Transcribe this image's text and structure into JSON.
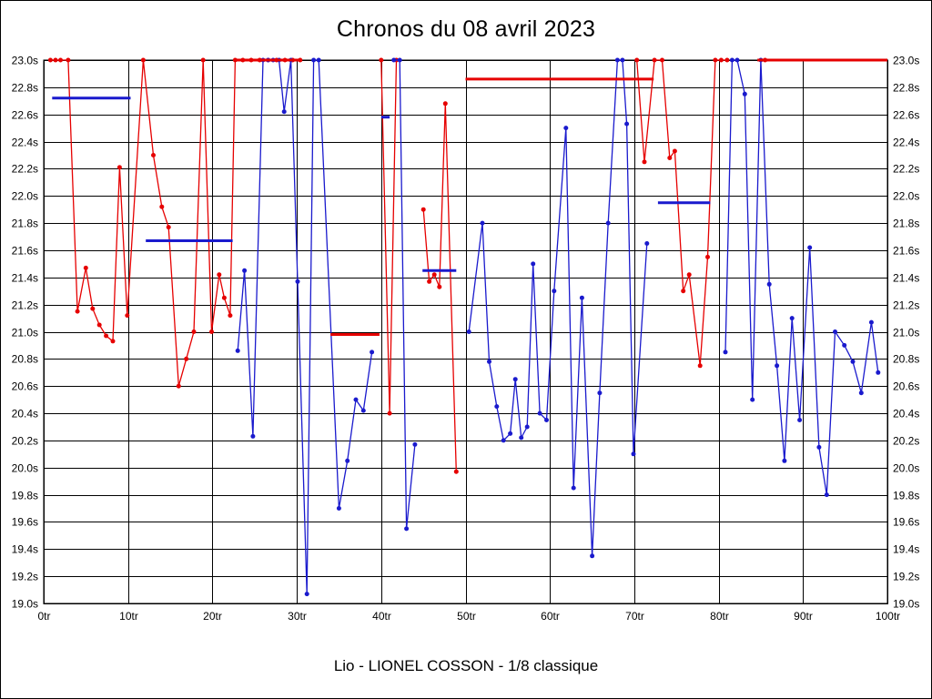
{
  "page": {
    "title": "Chronos du 08 avril 2023",
    "footer": "Lio - LIONEL COSSON - 1/8 classique"
  },
  "chart_data": {
    "type": "line",
    "title": "Chronos du 08 avril 2023",
    "caption": "Lio - LIONEL COSSON - 1/8 classique",
    "x_unit": "tr",
    "y_unit": "s",
    "xlim": [
      0,
      100
    ],
    "ylim": [
      19.0,
      23.0
    ],
    "x_step": 10,
    "y_step": 0.2,
    "grid": true,
    "x_tick_labels": [
      "0tr",
      "10tr",
      "20tr",
      "30tr",
      "40tr",
      "50tr",
      "60tr",
      "70tr",
      "80tr",
      "90tr",
      "100tr"
    ],
    "y_tick_labels": [
      "23.0s",
      "22.8s",
      "22.6s",
      "22.4s",
      "22.2s",
      "22.0s",
      "21.8s",
      "21.6s",
      "21.4s",
      "21.2s",
      "21.0s",
      "20.8s",
      "20.6s",
      "20.4s",
      "20.2s",
      "20.0s",
      "19.8s",
      "19.6s",
      "19.4s",
      "19.2s",
      "19.0s"
    ],
    "colors": {
      "red": "#e60000",
      "blue": "#1a1acd",
      "grid": "#000000"
    },
    "series": [
      {
        "name": "red",
        "color": "#e60000",
        "segments": [
          [
            [
              0.8,
              23.0
            ],
            [
              1.4,
              23.0
            ],
            [
              2.0,
              23.0
            ],
            [
              2.9,
              23.0
            ],
            [
              4.0,
              21.15
            ],
            [
              5.0,
              21.47
            ],
            [
              5.8,
              21.17
            ],
            [
              6.6,
              21.05
            ],
            [
              7.4,
              20.97
            ],
            [
              8.2,
              20.93
            ],
            [
              9.0,
              22.21
            ],
            [
              9.9,
              21.12
            ],
            [
              11.8,
              23.0
            ],
            [
              13.0,
              22.3
            ],
            [
              14.0,
              21.92
            ],
            [
              14.8,
              21.77
            ],
            [
              16.0,
              20.6
            ],
            [
              16.9,
              20.8
            ],
            [
              17.8,
              21.0
            ],
            [
              18.9,
              23.0
            ],
            [
              19.9,
              21.0
            ],
            [
              20.8,
              21.42
            ],
            [
              21.4,
              21.25
            ],
            [
              22.1,
              21.12
            ],
            [
              22.7,
              23.0
            ],
            [
              23.6,
              23.0
            ],
            [
              24.6,
              23.0
            ],
            [
              25.6,
              23.0
            ],
            [
              26.6,
              23.0
            ],
            [
              27.6,
              23.0
            ],
            [
              28.6,
              23.0
            ],
            [
              29.5,
              23.0
            ],
            [
              30.4,
              23.0
            ]
          ],
          [
            [
              40.0,
              23.0
            ],
            [
              41.0,
              20.4
            ],
            [
              41.8,
              23.0
            ]
          ],
          [
            [
              45.0,
              21.9
            ],
            [
              45.7,
              21.37
            ],
            [
              46.3,
              21.42
            ],
            [
              46.9,
              21.33
            ],
            [
              47.6,
              22.68
            ],
            [
              48.9,
              19.97
            ]
          ],
          [
            [
              70.3,
              23.0
            ],
            [
              71.2,
              22.25
            ],
            [
              72.4,
              23.0
            ],
            [
              73.3,
              23.0
            ],
            [
              74.2,
              22.28
            ],
            [
              74.8,
              22.33
            ],
            [
              75.8,
              21.3
            ],
            [
              76.5,
              21.42
            ],
            [
              77.8,
              20.75
            ],
            [
              78.7,
              21.55
            ],
            [
              79.6,
              23.0
            ],
            [
              80.3,
              23.0
            ],
            [
              81.0,
              23.0
            ]
          ],
          [
            [
              85.5,
              23.0
            ]
          ]
        ]
      },
      {
        "name": "blue",
        "color": "#1a1acd",
        "segments": [
          [
            [
              23.0,
              20.86
            ],
            [
              23.8,
              21.45
            ],
            [
              24.8,
              20.23
            ],
            [
              26.0,
              23.0
            ],
            [
              26.6,
              23.0
            ],
            [
              27.2,
              23.0
            ],
            [
              27.9,
              23.0
            ],
            [
              28.5,
              22.62
            ],
            [
              29.3,
              23.0
            ],
            [
              30.1,
              21.37
            ],
            [
              31.2,
              19.07
            ],
            [
              32.0,
              23.0
            ],
            [
              32.6,
              23.0
            ],
            [
              35.0,
              19.7
            ],
            [
              36.0,
              20.05
            ],
            [
              37.0,
              20.5
            ],
            [
              37.9,
              20.42
            ],
            [
              38.9,
              20.85
            ]
          ],
          [
            [
              41.5,
              23.0
            ],
            [
              42.2,
              23.0
            ],
            [
              43.0,
              19.55
            ],
            [
              44.0,
              20.17
            ]
          ],
          [
            [
              50.4,
              21.0
            ],
            [
              52.0,
              21.8
            ],
            [
              52.8,
              20.78
            ],
            [
              53.7,
              20.45
            ],
            [
              54.5,
              20.2
            ],
            [
              55.3,
              20.25
            ],
            [
              55.9,
              20.65
            ],
            [
              56.6,
              20.22
            ],
            [
              57.3,
              20.3
            ],
            [
              58.0,
              21.5
            ],
            [
              58.8,
              20.4
            ],
            [
              59.6,
              20.35
            ],
            [
              60.5,
              21.3
            ],
            [
              61.9,
              22.5
            ],
            [
              62.8,
              19.85
            ],
            [
              63.8,
              21.25
            ],
            [
              65.0,
              19.35
            ],
            [
              65.9,
              20.55
            ],
            [
              66.9,
              21.8
            ],
            [
              68.0,
              23.0
            ],
            [
              68.6,
              23.0
            ],
            [
              69.1,
              22.53
            ],
            [
              69.9,
              20.1
            ],
            [
              71.5,
              21.65
            ]
          ],
          [
            [
              80.8,
              20.85
            ],
            [
              81.6,
              23.0
            ],
            [
              82.2,
              23.0
            ],
            [
              83.1,
              22.75
            ],
            [
              84.0,
              20.5
            ],
            [
              85.0,
              23.0
            ],
            [
              86.0,
              21.35
            ],
            [
              86.9,
              20.75
            ],
            [
              87.8,
              20.05
            ],
            [
              88.7,
              21.1
            ],
            [
              89.6,
              20.35
            ],
            [
              90.8,
              21.62
            ],
            [
              91.9,
              20.15
            ],
            [
              92.8,
              19.8
            ],
            [
              93.8,
              21.0
            ],
            [
              94.9,
              20.9
            ],
            [
              95.9,
              20.78
            ],
            [
              96.9,
              20.55
            ],
            [
              98.1,
              21.07
            ],
            [
              98.9,
              20.7
            ]
          ]
        ]
      }
    ],
    "average_lines": [
      {
        "series": "blue",
        "color": "#1a1acd",
        "y": 22.72,
        "x1": 1.0,
        "x2": 10.3
      },
      {
        "series": "blue",
        "color": "#1a1acd",
        "y": 21.67,
        "x1": 12.1,
        "x2": 22.4
      },
      {
        "series": "red",
        "color": "#e60000",
        "y": 23.0,
        "x1": 22.6,
        "x2": 30.5
      },
      {
        "series": "red",
        "color": "#e60000",
        "y": 20.98,
        "x1": 34.0,
        "x2": 39.8
      },
      {
        "series": "blue",
        "color": "#1a1acd",
        "y": 22.58,
        "x1": 40.0,
        "x2": 41.0
      },
      {
        "series": "blue",
        "color": "#1a1acd",
        "y": 21.45,
        "x1": 44.9,
        "x2": 48.9
      },
      {
        "series": "red",
        "color": "#e60000",
        "y": 22.86,
        "x1": 50.0,
        "x2": 72.3
      },
      {
        "series": "blue",
        "color": "#1a1acd",
        "y": 21.95,
        "x1": 72.8,
        "x2": 79.0
      },
      {
        "series": "red",
        "color": "#e60000",
        "y": 23.0,
        "x1": 84.6,
        "x2": 100.0
      }
    ]
  }
}
